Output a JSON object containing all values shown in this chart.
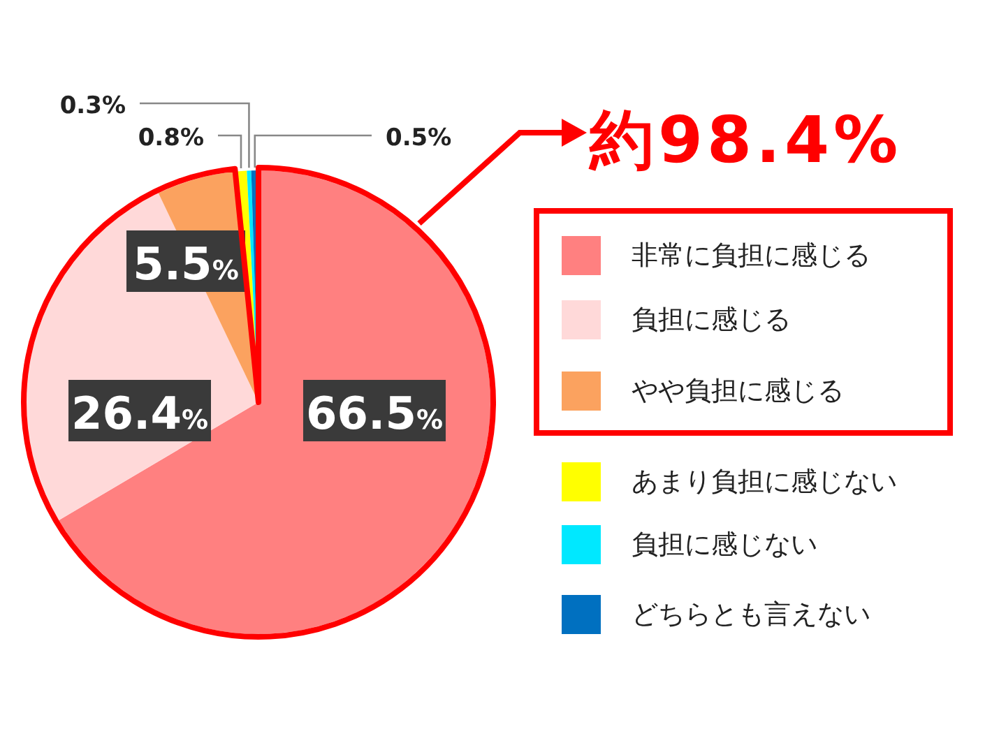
{
  "chart_data": {
    "type": "pie",
    "categories": [
      "非常に負担に感じる",
      "負担に感じる",
      "やや負担に感じる",
      "あまり負担に感じない",
      "負担に感じない",
      "どちらとも言えない"
    ],
    "values": [
      66.5,
      26.4,
      5.5,
      0.8,
      0.3,
      0.5
    ],
    "colors": [
      "#ff8080",
      "#ffd9d9",
      "#fba25f",
      "#ffff00",
      "#00e8ff",
      "#0070c0"
    ],
    "value_labels": [
      "66.5%",
      "26.4%",
      "5.5%",
      "0.8%",
      "0.3%",
      "0.5%"
    ],
    "legend": "right",
    "annotations": [
      "約98.4%"
    ]
  }
}
